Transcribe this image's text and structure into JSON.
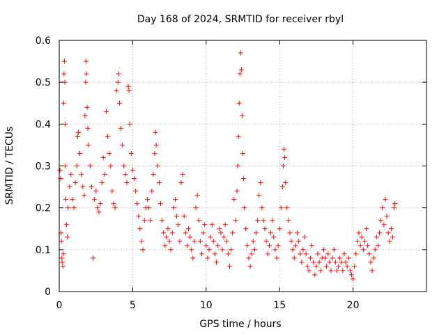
{
  "chart_data": {
    "type": "scatter",
    "title": "Day 168 of 2024, SRMTID for receiver rbyl",
    "xlabel": "GPS time / hours",
    "ylabel": "SRMTID / TECUs",
    "xlim": [
      0,
      25
    ],
    "ylim": [
      0,
      0.6
    ],
    "xticks": [
      0,
      5,
      10,
      15,
      20
    ],
    "xtick_labels": [
      "0",
      "5",
      "10",
      "15",
      "20"
    ],
    "yticks": [
      0,
      0.1,
      0.2,
      0.3,
      0.4,
      0.5,
      0.6
    ],
    "ytick_labels": [
      "0",
      "0.1",
      "0.2",
      "0.3",
      "0.4",
      "0.5",
      "0.6"
    ],
    "grid": true,
    "marker": "plus",
    "color": "#ff0000",
    "series": [
      {
        "name": "SRMTID",
        "points": [
          [
            0.05,
            0.29
          ],
          [
            0.1,
            0.27
          ],
          [
            0.12,
            0.14
          ],
          [
            0.15,
            0.12
          ],
          [
            0.18,
            0.08
          ],
          [
            0.2,
            0.07
          ],
          [
            0.25,
            0.06
          ],
          [
            0.28,
            0.09
          ],
          [
            0.3,
            0.45
          ],
          [
            0.32,
            0.52
          ],
          [
            0.35,
            0.55
          ],
          [
            0.38,
            0.5
          ],
          [
            0.4,
            0.4
          ],
          [
            0.42,
            0.3
          ],
          [
            0.45,
            0.22
          ],
          [
            0.5,
            0.16
          ],
          [
            0.55,
            0.13
          ],
          [
            0.6,
            0.2
          ],
          [
            0.7,
            0.25
          ],
          [
            0.8,
            0.28
          ],
          [
            0.9,
            0.22
          ],
          [
            1.0,
            0.2
          ],
          [
            1.1,
            0.26
          ],
          [
            1.2,
            0.3
          ],
          [
            1.25,
            0.37
          ],
          [
            1.3,
            0.38
          ],
          [
            1.4,
            0.33
          ],
          [
            1.5,
            0.28
          ],
          [
            1.6,
            0.25
          ],
          [
            1.7,
            0.23
          ],
          [
            1.75,
            0.42
          ],
          [
            1.8,
            0.5
          ],
          [
            1.82,
            0.55
          ],
          [
            1.85,
            0.52
          ],
          [
            1.9,
            0.44
          ],
          [
            1.95,
            0.39
          ],
          [
            2.0,
            0.35
          ],
          [
            2.1,
            0.3
          ],
          [
            2.2,
            0.25
          ],
          [
            2.3,
            0.08
          ],
          [
            2.4,
            0.22
          ],
          [
            2.5,
            0.24
          ],
          [
            2.6,
            0.2
          ],
          [
            2.7,
            0.19
          ],
          [
            2.8,
            0.21
          ],
          [
            2.9,
            0.26
          ],
          [
            3.0,
            0.32
          ],
          [
            3.1,
            0.28
          ],
          [
            3.2,
            0.43
          ],
          [
            3.3,
            0.37
          ],
          [
            3.4,
            0.33
          ],
          [
            3.5,
            0.3
          ],
          [
            3.6,
            0.24
          ],
          [
            3.7,
            0.21
          ],
          [
            3.8,
            0.2
          ],
          [
            3.9,
            0.48
          ],
          [
            4.0,
            0.5
          ],
          [
            4.05,
            0.52
          ],
          [
            4.1,
            0.45
          ],
          [
            4.2,
            0.39
          ],
          [
            4.3,
            0.35
          ],
          [
            4.4,
            0.3
          ],
          [
            4.5,
            0.28
          ],
          [
            4.6,
            0.26
          ],
          [
            4.7,
            0.49
          ],
          [
            4.75,
            0.48
          ],
          [
            4.8,
            0.4
          ],
          [
            4.9,
            0.33
          ],
          [
            5.0,
            0.29
          ],
          [
            5.1,
            0.27
          ],
          [
            5.2,
            0.24
          ],
          [
            5.3,
            0.21
          ],
          [
            5.4,
            0.18
          ],
          [
            5.5,
            0.15
          ],
          [
            5.6,
            0.12
          ],
          [
            5.7,
            0.1
          ],
          [
            5.8,
            0.17
          ],
          [
            5.9,
            0.2
          ],
          [
            6.0,
            0.22
          ],
          [
            6.1,
            0.2
          ],
          [
            6.2,
            0.17
          ],
          [
            6.3,
            0.24
          ],
          [
            6.4,
            0.28
          ],
          [
            6.5,
            0.33
          ],
          [
            6.55,
            0.38
          ],
          [
            6.6,
            0.35
          ],
          [
            6.7,
            0.3
          ],
          [
            6.8,
            0.26
          ],
          [
            6.9,
            0.21
          ],
          [
            7.0,
            0.17
          ],
          [
            7.1,
            0.14
          ],
          [
            7.2,
            0.11
          ],
          [
            7.3,
            0.13
          ],
          [
            7.4,
            0.15
          ],
          [
            7.5,
            0.12
          ],
          [
            7.6,
            0.1
          ],
          [
            7.7,
            0.14
          ],
          [
            7.8,
            0.2
          ],
          [
            7.9,
            0.22
          ],
          [
            8.0,
            0.18
          ],
          [
            8.1,
            0.16
          ],
          [
            8.2,
            0.12
          ],
          [
            8.3,
            0.26
          ],
          [
            8.4,
            0.28
          ],
          [
            8.5,
            0.18
          ],
          [
            8.6,
            0.14
          ],
          [
            8.7,
            0.11
          ],
          [
            8.8,
            0.15
          ],
          [
            8.9,
            0.13
          ],
          [
            9.0,
            0.1
          ],
          [
            9.1,
            0.08
          ],
          [
            9.2,
            0.12
          ],
          [
            9.3,
            0.2
          ],
          [
            9.4,
            0.23
          ],
          [
            9.5,
            0.17
          ],
          [
            9.6,
            0.12
          ],
          [
            9.7,
            0.09
          ],
          [
            9.8,
            0.14
          ],
          [
            9.9,
            0.16
          ],
          [
            10.0,
            0.11
          ],
          [
            10.1,
            0.08
          ],
          [
            10.2,
            0.1
          ],
          [
            10.3,
            0.13
          ],
          [
            10.4,
            0.16
          ],
          [
            10.5,
            0.12
          ],
          [
            10.6,
            0.09
          ],
          [
            10.7,
            0.07
          ],
          [
            10.8,
            0.11
          ],
          [
            10.9,
            0.15
          ],
          [
            11.0,
            0.14
          ],
          [
            11.1,
            0.1
          ],
          [
            11.2,
            0.13
          ],
          [
            11.3,
            0.16
          ],
          [
            11.4,
            0.12
          ],
          [
            11.5,
            0.09
          ],
          [
            11.6,
            0.06
          ],
          [
            11.7,
            0.1
          ],
          [
            11.8,
            0.14
          ],
          [
            11.9,
            0.22
          ],
          [
            12.0,
            0.17
          ],
          [
            12.1,
            0.24
          ],
          [
            12.15,
            0.3
          ],
          [
            12.2,
            0.37
          ],
          [
            12.25,
            0.45
          ],
          [
            12.3,
            0.52
          ],
          [
            12.35,
            0.57
          ],
          [
            12.4,
            0.53
          ],
          [
            12.45,
            0.42
          ],
          [
            12.5,
            0.33
          ],
          [
            12.55,
            0.27
          ],
          [
            12.6,
            0.2
          ],
          [
            12.7,
            0.15
          ],
          [
            12.8,
            0.11
          ],
          [
            12.9,
            0.08
          ],
          [
            13.0,
            0.06
          ],
          [
            13.1,
            0.09
          ],
          [
            13.2,
            0.12
          ],
          [
            13.3,
            0.1
          ],
          [
            13.4,
            0.14
          ],
          [
            13.5,
            0.17
          ],
          [
            13.6,
            0.23
          ],
          [
            13.7,
            0.26
          ],
          [
            13.8,
            0.2
          ],
          [
            13.9,
            0.17
          ],
          [
            14.0,
            0.15
          ],
          [
            14.1,
            0.12
          ],
          [
            14.2,
            0.09
          ],
          [
            14.3,
            0.11
          ],
          [
            14.4,
            0.14
          ],
          [
            14.5,
            0.17
          ],
          [
            14.6,
            0.13
          ],
          [
            14.7,
            0.1
          ],
          [
            14.8,
            0.08
          ],
          [
            14.9,
            0.11
          ],
          [
            15.0,
            0.15
          ],
          [
            15.1,
            0.2
          ],
          [
            15.2,
            0.25
          ],
          [
            15.25,
            0.3
          ],
          [
            15.3,
            0.34
          ],
          [
            15.35,
            0.32
          ],
          [
            15.4,
            0.26
          ],
          [
            15.5,
            0.2
          ],
          [
            15.6,
            0.17
          ],
          [
            15.7,
            0.14
          ],
          [
            15.8,
            0.12
          ],
          [
            15.9,
            0.1
          ],
          [
            16.0,
            0.08
          ],
          [
            16.1,
            0.11
          ],
          [
            16.2,
            0.14
          ],
          [
            16.3,
            0.12
          ],
          [
            16.4,
            0.09
          ],
          [
            16.5,
            0.07
          ],
          [
            16.6,
            0.1
          ],
          [
            16.7,
            0.13
          ],
          [
            16.8,
            0.09
          ],
          [
            16.9,
            0.06
          ],
          [
            17.0,
            0.05
          ],
          [
            17.1,
            0.08
          ],
          [
            17.2,
            0.11
          ],
          [
            17.3,
            0.07
          ],
          [
            17.4,
            0.04
          ],
          [
            17.5,
            0.06
          ],
          [
            17.6,
            0.09
          ],
          [
            17.7,
            0.07
          ],
          [
            17.8,
            0.05
          ],
          [
            17.9,
            0.08
          ],
          [
            18.0,
            0.1
          ],
          [
            18.1,
            0.08
          ],
          [
            18.2,
            0.06
          ],
          [
            18.3,
            0.09
          ],
          [
            18.4,
            0.07
          ],
          [
            18.5,
            0.05
          ],
          [
            18.6,
            0.08
          ],
          [
            18.7,
            0.1
          ],
          [
            18.8,
            0.07
          ],
          [
            18.9,
            0.05
          ],
          [
            19.0,
            0.06
          ],
          [
            19.1,
            0.08
          ],
          [
            19.2,
            0.07
          ],
          [
            19.3,
            0.05
          ],
          [
            19.4,
            0.09
          ],
          [
            19.5,
            0.07
          ],
          [
            19.6,
            0.06
          ],
          [
            19.7,
            0.08
          ],
          [
            19.8,
            0.05
          ],
          [
            19.9,
            0.04
          ],
          [
            20.0,
            0.03
          ],
          [
            20.1,
            0.06
          ],
          [
            20.2,
            0.09
          ],
          [
            20.3,
            0.12
          ],
          [
            20.4,
            0.14
          ],
          [
            20.5,
            0.11
          ],
          [
            20.6,
            0.13
          ],
          [
            20.7,
            0.1
          ],
          [
            20.8,
            0.12
          ],
          [
            20.9,
            0.15
          ],
          [
            21.0,
            0.11
          ],
          [
            21.1,
            0.09
          ],
          [
            21.2,
            0.07
          ],
          [
            21.3,
            0.05
          ],
          [
            21.4,
            0.08
          ],
          [
            21.5,
            0.1
          ],
          [
            21.6,
            0.13
          ],
          [
            21.7,
            0.11
          ],
          [
            21.8,
            0.14
          ],
          [
            21.9,
            0.17
          ],
          [
            22.0,
            0.2
          ],
          [
            22.1,
            0.16
          ],
          [
            22.2,
            0.22
          ],
          [
            22.3,
            0.18
          ],
          [
            22.4,
            0.14
          ],
          [
            22.5,
            0.12
          ],
          [
            22.6,
            0.15
          ],
          [
            22.7,
            0.13
          ],
          [
            22.8,
            0.2
          ],
          [
            22.85,
            0.21
          ]
        ]
      }
    ]
  }
}
